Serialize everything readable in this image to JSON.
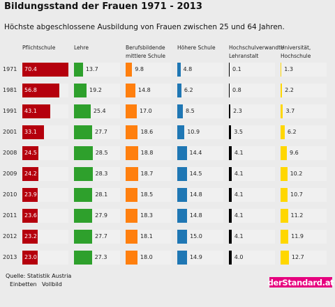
{
  "header": {
    "title": "Bildungsstand der Frauen 1971 - 2013",
    "subtitle": "Höchste abgeschlossene Ausbildung von Frauen zwischen 25 und 64 Jahren."
  },
  "colors": {
    "pflichtschule": "#b5000d",
    "lehre": "#2ea02c",
    "berufsbildende": "#ff7f0e",
    "hoehere": "#1f77b4",
    "hochschulverwandt": "#000000",
    "universitaet": "#ffd700",
    "brand": "#e6007e"
  },
  "footer": {
    "source": "Quelle: Statistik Austria",
    "embed": "Einbetten",
    "fullscreen": "Vollbild",
    "brand": "derStandard.at"
  },
  "chart_data": {
    "type": "bar",
    "title": "Bildungsstand der Frauen 1971 - 2013",
    "subtitle": "Höchste abgeschlossene Ausbildung von Frauen zwischen 25 und 64 Jahren.",
    "categories": [
      "1971",
      "1981",
      "1991",
      "2001",
      "2008",
      "2009",
      "2010",
      "2011",
      "2012",
      "2013"
    ],
    "series": [
      {
        "name": "Pflichtschule",
        "lines": [
          "Pflichtschule"
        ],
        "values": [
          70.4,
          56.8,
          43.1,
          33.1,
          24.5,
          24.2,
          23.9,
          23.6,
          23.2,
          23.0
        ]
      },
      {
        "name": "Lehre",
        "lines": [
          "Lehre"
        ],
        "values": [
          13.7,
          19.2,
          25.4,
          27.7,
          28.5,
          28.3,
          28.1,
          27.9,
          27.7,
          27.3
        ]
      },
      {
        "name": "Berufsbildende mittlere Schule",
        "lines": [
          "Berufsbildende",
          "mittlere Schule"
        ],
        "values": [
          9.8,
          14.8,
          17.0,
          18.6,
          18.8,
          18.7,
          18.5,
          18.3,
          18.1,
          18.0
        ]
      },
      {
        "name": "Höhere Schule",
        "lines": [
          "Höhere Schule"
        ],
        "values": [
          4.8,
          6.2,
          8.5,
          10.9,
          14.4,
          14.5,
          14.8,
          14.8,
          15.0,
          14.9
        ]
      },
      {
        "name": "Hochschulverwandte Lehranstalt",
        "lines": [
          "Hochschulverwandte",
          "Lehranstalt"
        ],
        "values": [
          0.1,
          0.8,
          2.3,
          3.5,
          4.1,
          4.1,
          4.1,
          4.1,
          4.1,
          4.0
        ]
      },
      {
        "name": "Universität, Hochschule",
        "lines": [
          "Universität,",
          "Hochschule"
        ],
        "values": [
          1.3,
          2.2,
          3.7,
          6.2,
          9.6,
          10.2,
          10.7,
          11.2,
          11.9,
          12.7
        ]
      }
    ]
  }
}
